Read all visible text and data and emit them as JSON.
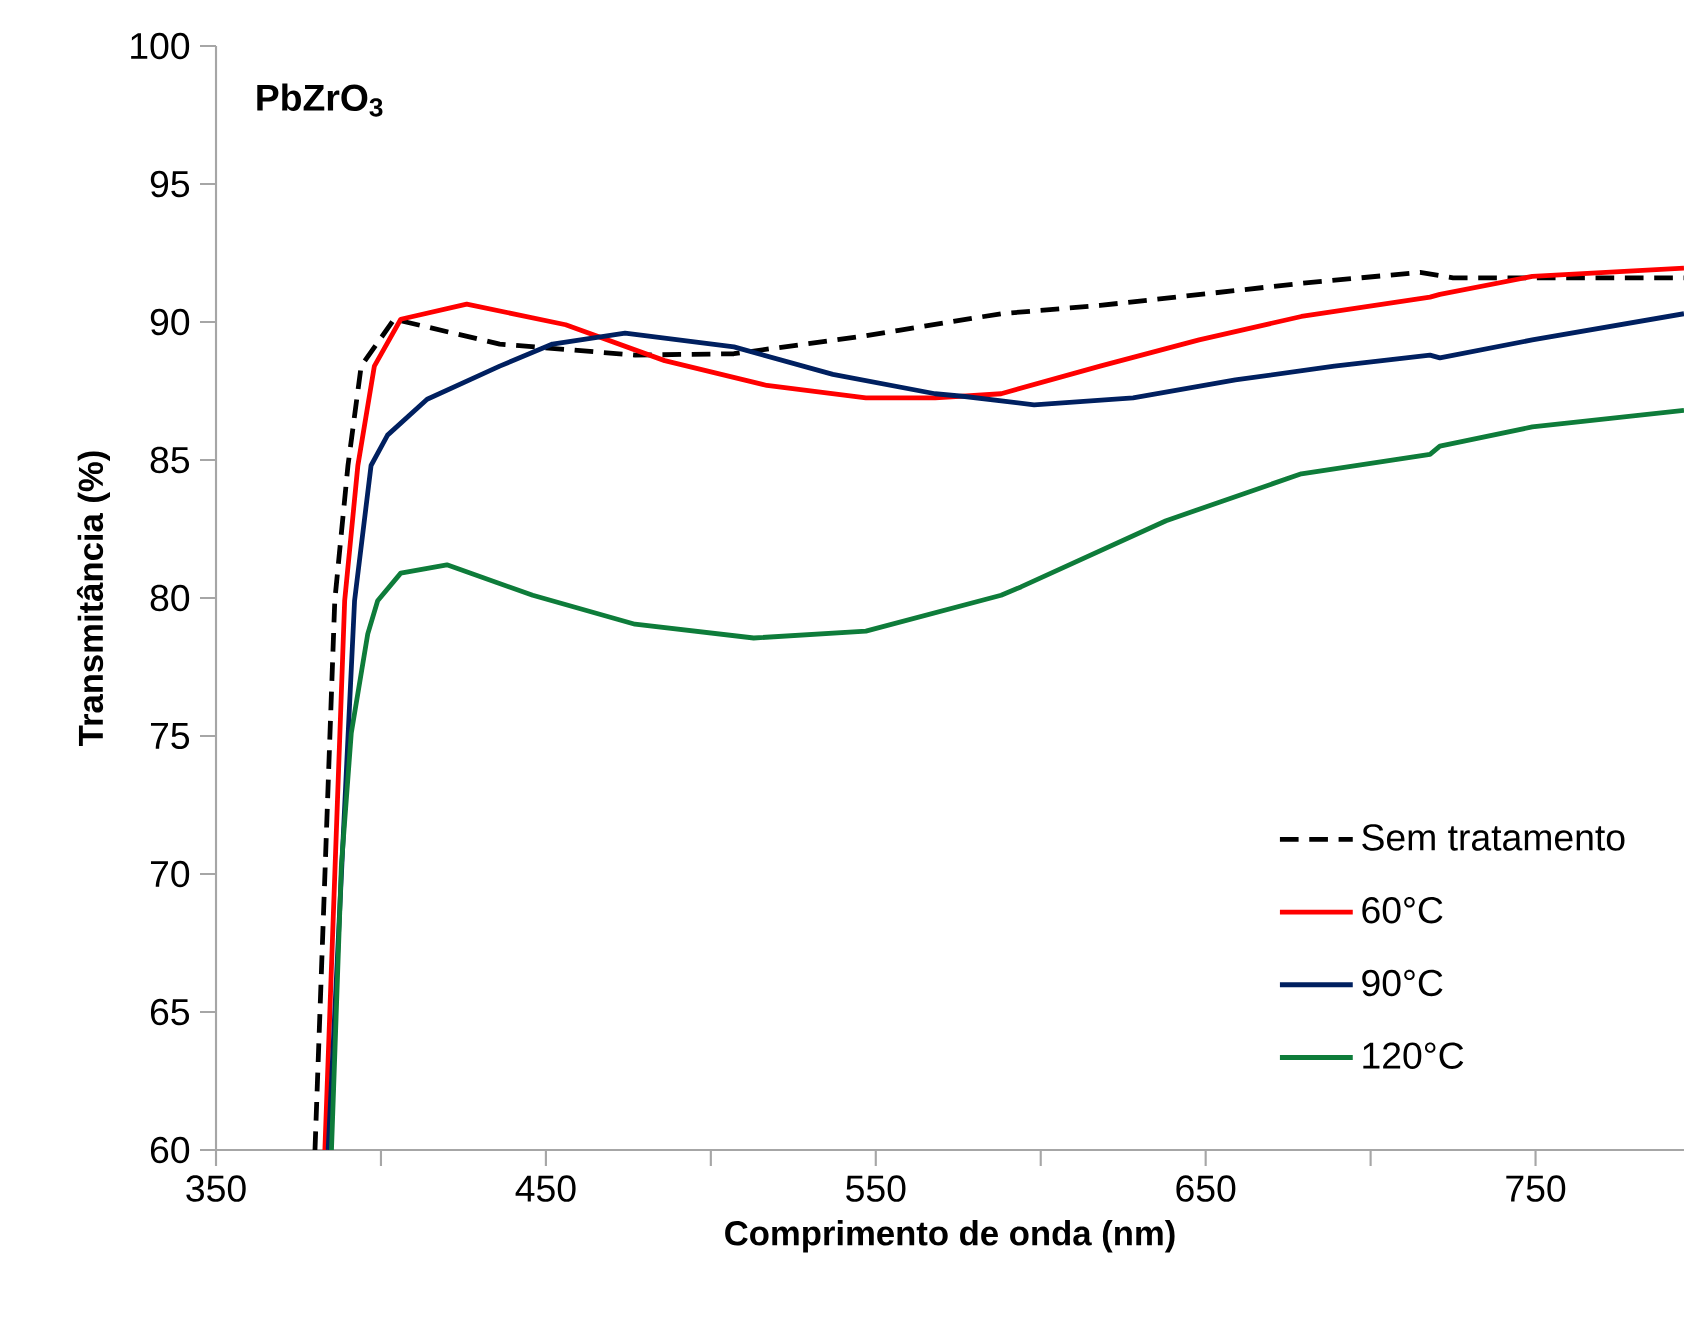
{
  "chart_data": {
    "type": "line",
    "title": "PbZrO$_{3}$",
    "xlabel": "Comprimento de onda (nm)",
    "ylabel": "Transmitância (%)",
    "xlim": [
      350,
      795
    ],
    "ylim": [
      60,
      100
    ],
    "xticks": [
      350,
      {
        "value": 400,
        "label": null
      },
      450,
      {
        "value": 500,
        "label": null
      },
      550,
      {
        "value": 600,
        "label": null
      },
      650,
      {
        "value": 700,
        "label": null
      },
      750
    ],
    "yticks": [
      60,
      65,
      70,
      75,
      80,
      85,
      90,
      95,
      100
    ],
    "legend": "bottom right",
    "marker": "none",
    "grid": false,
    "series": [
      {
        "name": "Sem tratamento",
        "color": "#000000",
        "line_style": "dashed",
        "x": [
          380,
          386,
          390,
          394,
          404,
          436,
          477,
          507,
          547,
          557,
          588,
          618,
          679,
          715,
          725,
          795
        ],
        "values": [
          60,
          79.9,
          84.8,
          88.4,
          90.1,
          89.2,
          88.8,
          88.85,
          89.5,
          89.7,
          90.3,
          90.6,
          91.4,
          91.8,
          91.6,
          91.6
        ]
      },
      {
        "name": "60°C",
        "color": "#ff0000",
        "line_style": "solid",
        "x": [
          383,
          389,
          393,
          398,
          406,
          426,
          456,
          486,
          517,
          547,
          568,
          588,
          618,
          648,
          679,
          718,
          721,
          749,
          795
        ],
        "values": [
          60,
          79.9,
          84.8,
          88.4,
          90.1,
          90.65,
          89.9,
          88.6,
          87.7,
          87.25,
          87.25,
          87.4,
          88.4,
          89.35,
          90.2,
          90.9,
          91.0,
          91.65,
          91.95
        ]
      },
      {
        "name": "90°C",
        "color": "#002060",
        "line_style": "solid",
        "x": [
          384,
          392,
          397,
          402,
          414,
          436,
          452,
          474,
          507,
          537,
          568,
          577,
          598,
          628,
          659,
          689,
          718,
          721,
          749,
          795
        ],
        "values": [
          60,
          79.9,
          84.8,
          85.9,
          87.2,
          88.4,
          89.2,
          89.6,
          89.1,
          88.1,
          87.4,
          87.3,
          87.0,
          87.25,
          87.9,
          88.4,
          88.8,
          88.7,
          89.35,
          90.3
        ]
      },
      {
        "name": "120°C",
        "color": "#0e7c3a",
        "line_style": "solid",
        "x": [
          385,
          388,
          391,
          396,
          399,
          406,
          420,
          446,
          477,
          513,
          547,
          588,
          594,
          638,
          679,
          718,
          721,
          749,
          795
        ],
        "values": [
          60,
          70.3,
          75.1,
          78.7,
          79.9,
          80.9,
          81.2,
          80.1,
          79.05,
          78.55,
          78.8,
          80.1,
          80.4,
          82.8,
          84.5,
          85.2,
          85.5,
          86.2,
          86.8
        ]
      }
    ]
  }
}
